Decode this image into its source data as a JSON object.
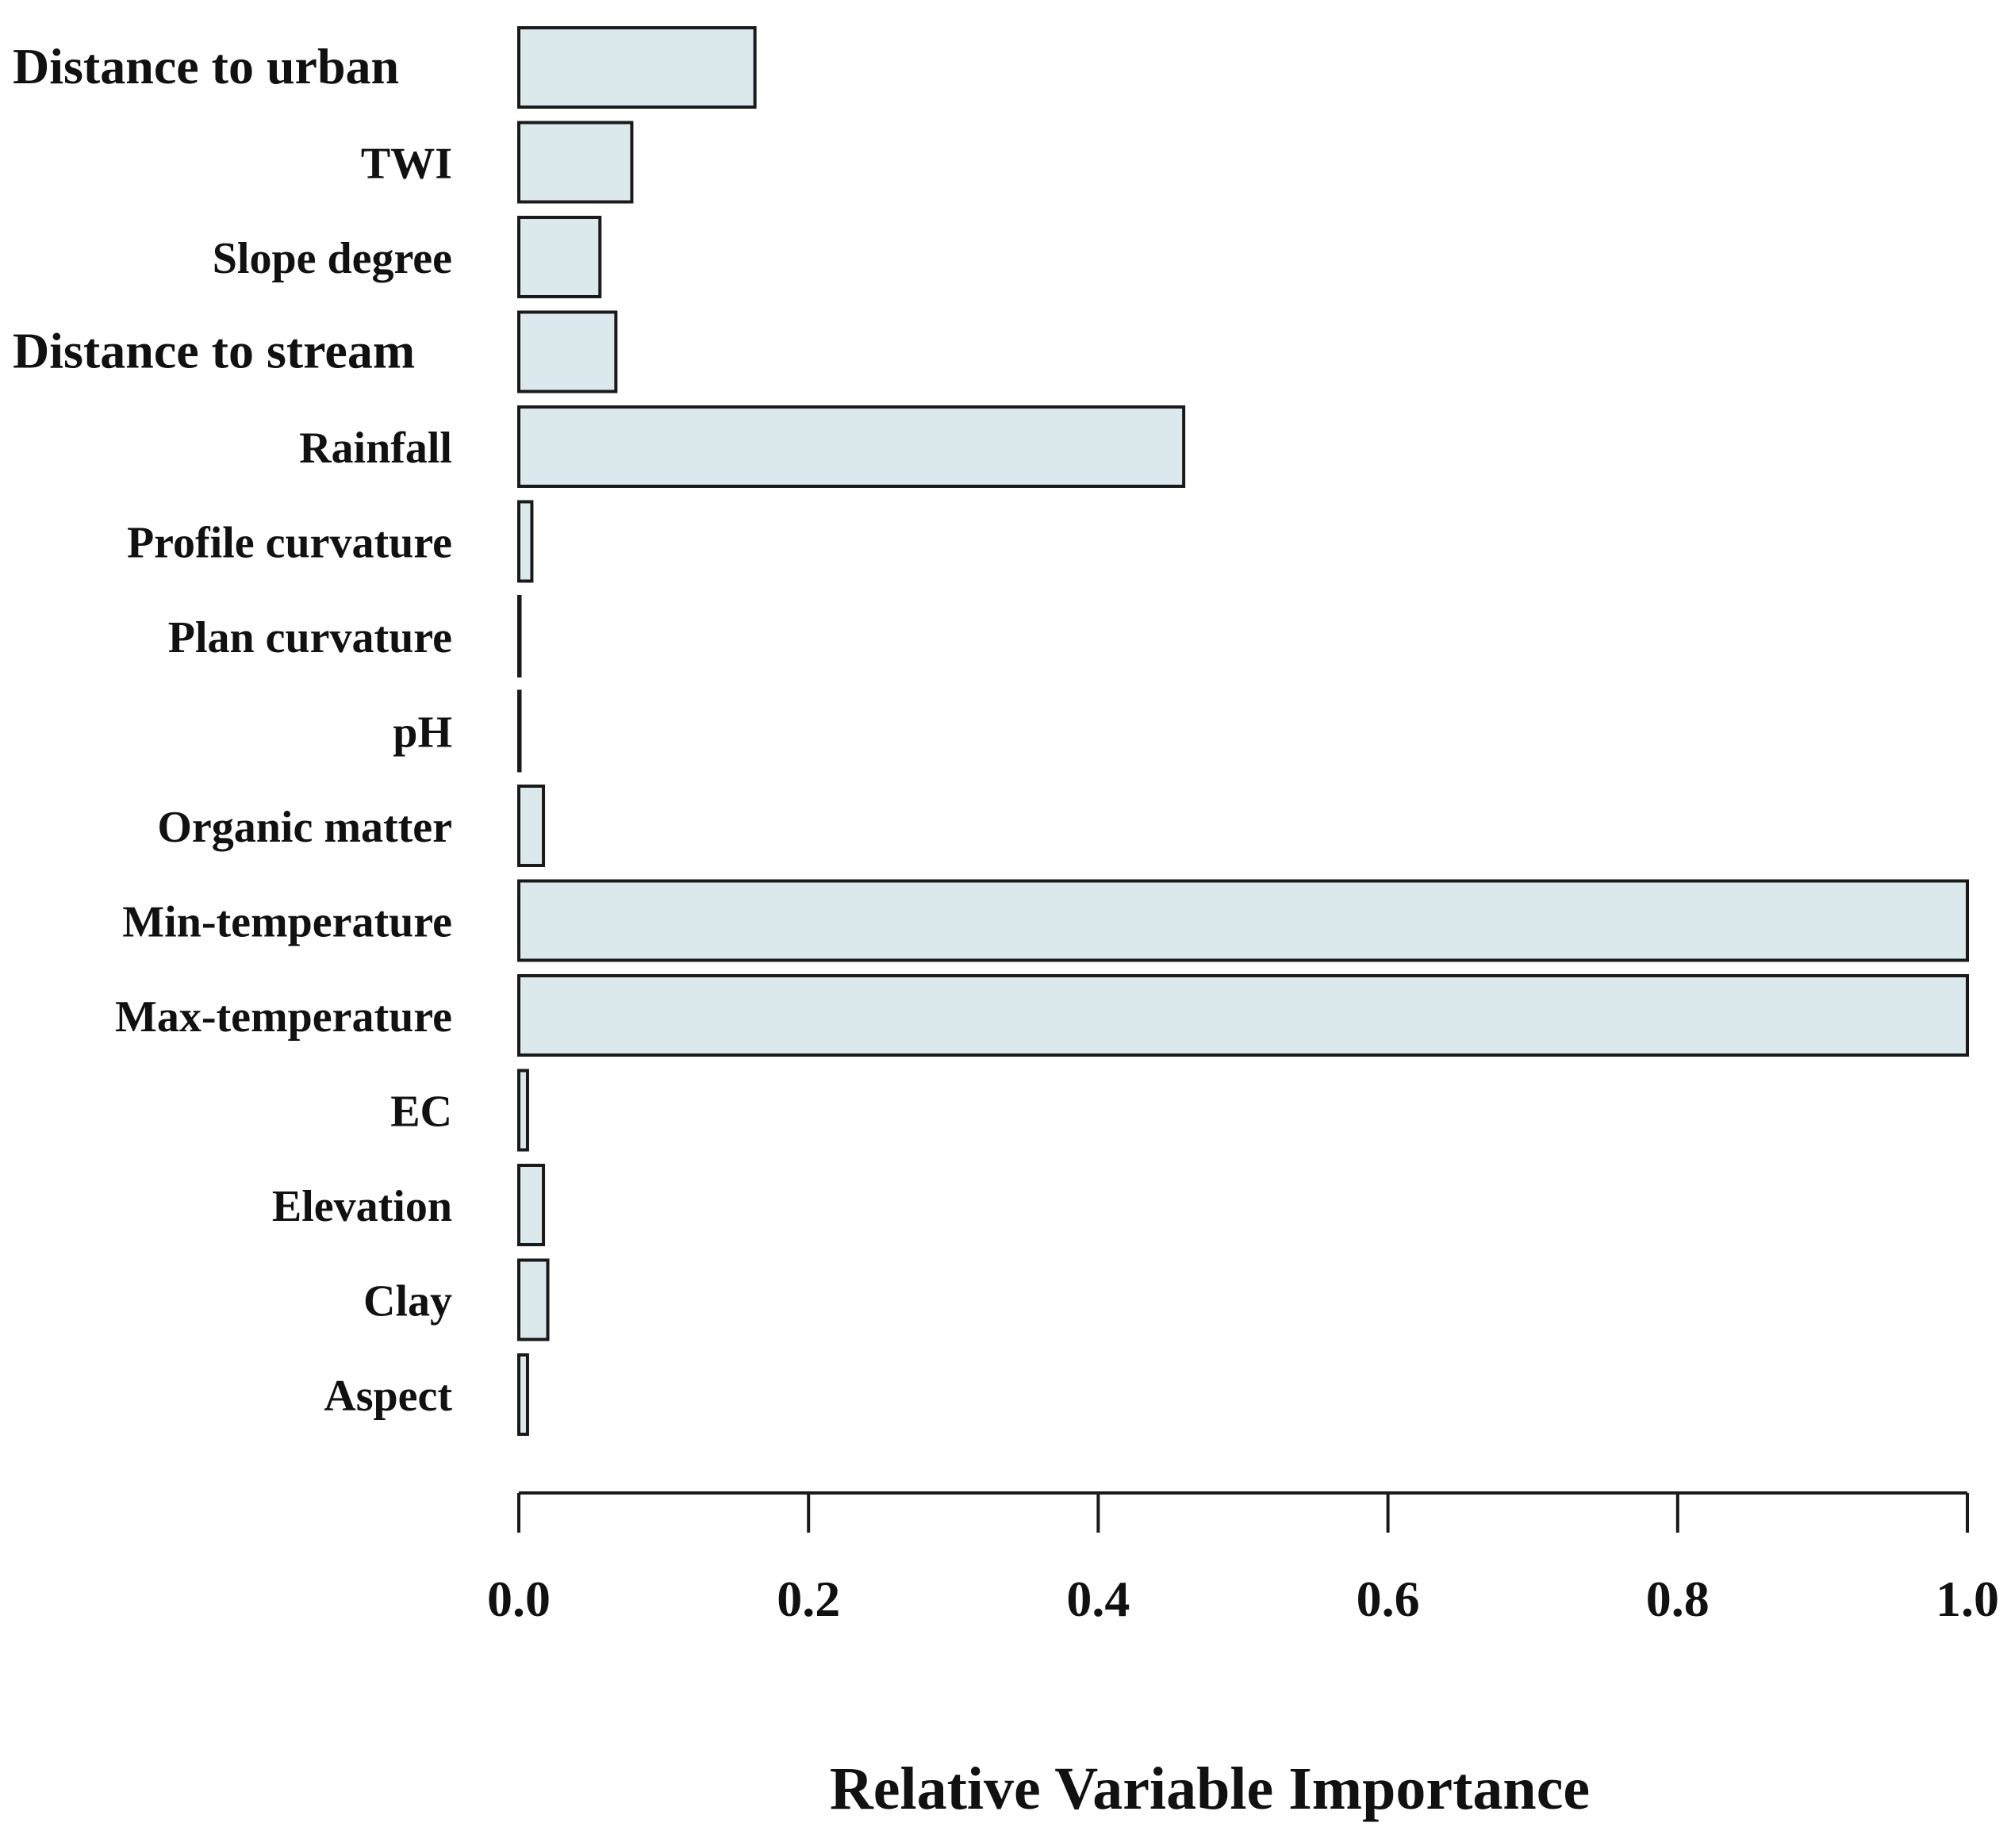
{
  "chart_data": {
    "type": "bar",
    "orientation": "horizontal",
    "categories": [
      "Distance to urban",
      "TWI",
      "Slope degree",
      "Distance to stream",
      "Rainfall",
      "Profile curvature",
      "Plan curvature",
      "pH",
      "Organic matter",
      "Min-temperature",
      "Max-temperature",
      "EC",
      "Elevation",
      "Clay",
      "Aspect"
    ],
    "values": [
      0.163,
      0.078,
      0.056,
      0.067,
      0.459,
      0.009,
      0.0,
      0.0,
      0.017,
      1.0,
      1.0,
      0.006,
      0.017,
      0.02,
      0.006
    ],
    "xlabel": "Relative Variable Importance",
    "ylabel": "",
    "title": "",
    "xlim": [
      0,
      1.0
    ],
    "xticks": [
      "0.0",
      "0.2",
      "0.4",
      "0.6",
      "0.8",
      "1.0"
    ],
    "bar_color": "#dce9ec",
    "grid": false
  }
}
